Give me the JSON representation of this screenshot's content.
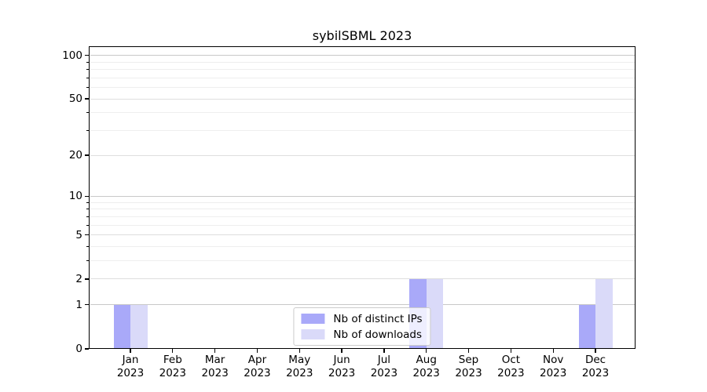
{
  "page": {
    "title": "sybilSBML 2023"
  },
  "chart_data": {
    "type": "bar",
    "title": "sybilSBML 2023",
    "x_months": [
      "Jan",
      "Feb",
      "Mar",
      "Apr",
      "May",
      "Jun",
      "Jul",
      "Aug",
      "Sep",
      "Oct",
      "Nov",
      "Dec"
    ],
    "x_year": "2023",
    "series": [
      {
        "name": "Nb of distinct IPs",
        "color": "#a9a9f9",
        "values": [
          1,
          0,
          0,
          0,
          0,
          0,
          0,
          2,
          0,
          0,
          0,
          1
        ]
      },
      {
        "name": "Nb of downloads",
        "color": "#dadaf9",
        "values": [
          1,
          0,
          0,
          0,
          0,
          0,
          0,
          2,
          0,
          0,
          0,
          2
        ]
      }
    ],
    "yscale": "log10(1+x)",
    "ylim": [
      0,
      115
    ],
    "yticks": [
      0,
      1,
      2,
      5,
      10,
      20,
      50,
      100
    ],
    "grid_major": [
      1,
      2,
      5,
      10,
      20,
      50,
      100
    ],
    "grid_minor": [
      3,
      4,
      6,
      7,
      8,
      9,
      30,
      40,
      60,
      70,
      80,
      90
    ],
    "grid_color_power10": "#c8c8c8",
    "grid_color_major": "#dedede",
    "grid_color_minor": "#eeeeee",
    "legend": {
      "position": "lower center",
      "items": [
        "Nb of distinct IPs",
        "Nb of downloads"
      ]
    }
  }
}
